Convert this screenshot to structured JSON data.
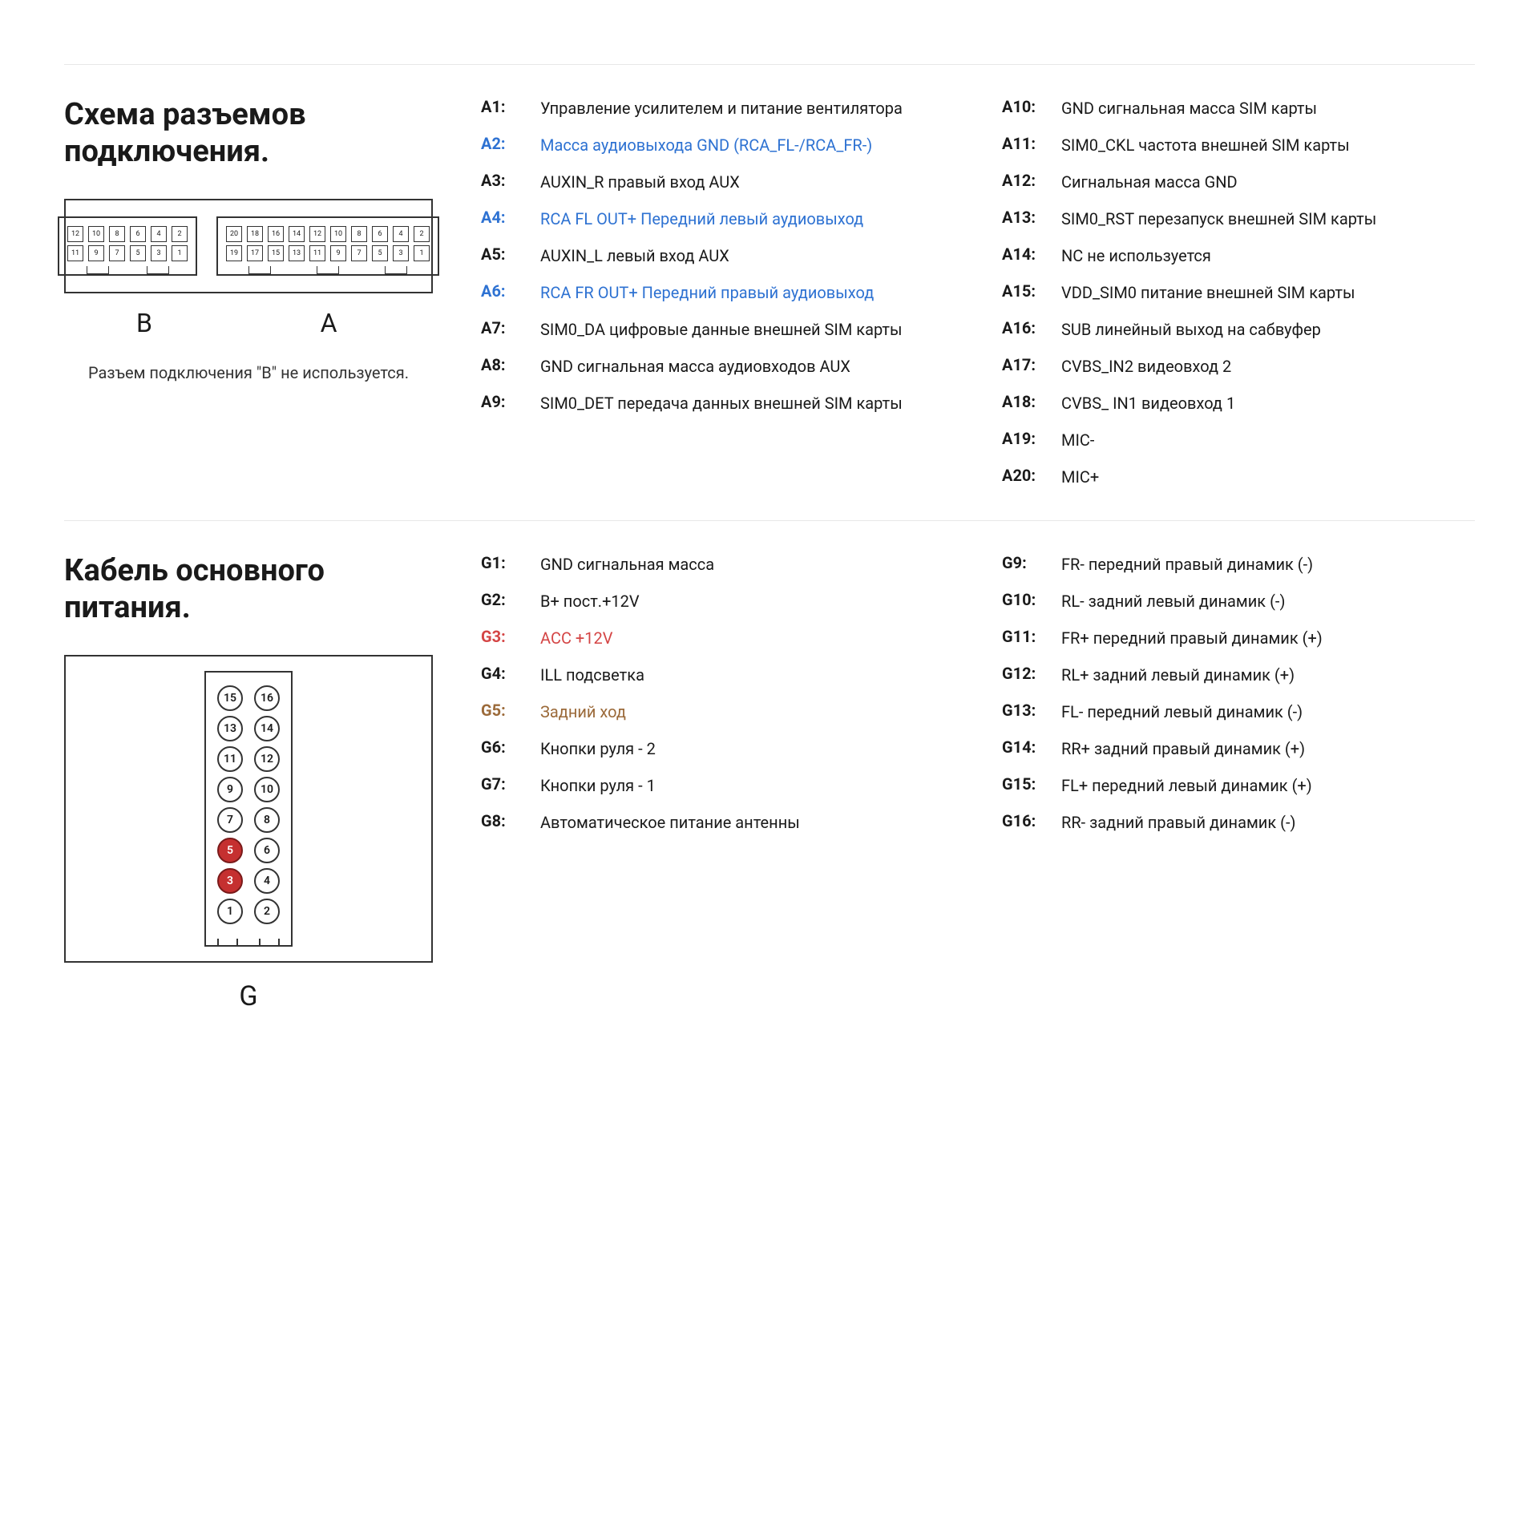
{
  "colors": {
    "black": "#1a1a1a",
    "blue": "#2e72d2",
    "red": "#d44545",
    "brown": "#9b6a3a",
    "divider": "#e8e8e8",
    "border": "#333333",
    "highlight_bg": "#c53030"
  },
  "section1": {
    "title": "Схема разъемов подключения.",
    "notice": "Разъем подключения \"B\" не используется.",
    "labels": {
      "B": "B",
      "A": "A"
    },
    "connectorB": {
      "rows": 2,
      "cols": 6,
      "top_start": 12,
      "bottom_start": 11
    },
    "connectorA": {
      "rows": 2,
      "cols": 10,
      "top_start": 20,
      "bottom_start": 19
    },
    "pins_left": [
      {
        "id": "A1:",
        "desc": "Управление усилителем и питание вентилятора",
        "color": "black"
      },
      {
        "id": "A2:",
        "desc": "Масса аудиовыхода GND (RCA_FL-/RCA_FR-)",
        "color": "blue"
      },
      {
        "id": "A3:",
        "desc": "AUXIN_R правый вход AUX",
        "color": "black"
      },
      {
        "id": "A4:",
        "desc": "RCA FL OUT+  Передний левый аудиовыход",
        "color": "blue"
      },
      {
        "id": "A5:",
        "desc": "AUXIN_L левый вход AUX",
        "color": "black"
      },
      {
        "id": "A6:",
        "desc": "RCA FR OUT+  Передний правый аудиовыход",
        "color": "blue"
      },
      {
        "id": "A7:",
        "desc": "SIM0_DA цифровые данные внешней SIM карты",
        "color": "black"
      },
      {
        "id": "A8:",
        "desc": "GND сигнальная масса аудиовходов AUX",
        "color": "black"
      },
      {
        "id": "A9:",
        "desc": "SIM0_DET передача данных внешней SIM карты",
        "color": "black"
      }
    ],
    "pins_right": [
      {
        "id": "A10:",
        "desc": "GND сигнальная масса SIM карты",
        "color": "black"
      },
      {
        "id": "A11:",
        "desc": "SIM0_CKL частота внешней SIM карты",
        "color": "black"
      },
      {
        "id": "A12:",
        "desc": "Сигнальная масса GND",
        "color": "black"
      },
      {
        "id": "A13:",
        "desc": "SIM0_RST перезапуск внешней SIM карты",
        "color": "black"
      },
      {
        "id": "A14:",
        "desc": "NC  не используется",
        "color": "black"
      },
      {
        "id": "A15:",
        "desc": "VDD_SIM0 питание внешней SIM карты",
        "color": "black"
      },
      {
        "id": "A16:",
        "desc": "SUB линейный выход на сабвуфер",
        "color": "black"
      },
      {
        "id": "A17:",
        "desc": "CVBS_IN2 видеовход 2",
        "color": "black"
      },
      {
        "id": "A18:",
        "desc": "CVBS_ IN1 видеовход 1",
        "color": "black"
      },
      {
        "id": "A19:",
        "desc": "MIC-",
        "color": "black"
      },
      {
        "id": "A20:",
        "desc": "MIC+",
        "color": "black"
      }
    ]
  },
  "section2": {
    "title": "Кабель основного питания.",
    "label": "G",
    "connector": {
      "layout": [
        [
          15,
          16
        ],
        [
          13,
          14
        ],
        [
          11,
          12
        ],
        [
          9,
          10
        ],
        [
          7,
          8
        ],
        [
          5,
          6
        ],
        [
          3,
          4
        ],
        [
          1,
          2
        ]
      ],
      "highlighted": [
        3,
        5
      ]
    },
    "pins_left": [
      {
        "id": "G1:",
        "desc": "GND сигнальная масса",
        "color": "black"
      },
      {
        "id": "G2:",
        "desc": "B+ пост.+12V",
        "color": "black"
      },
      {
        "id": "G3:",
        "desc": "ACC +12V",
        "color": "red"
      },
      {
        "id": "G4:",
        "desc": "ILL подсветка",
        "color": "black"
      },
      {
        "id": "G5:",
        "desc": "Задний ход",
        "color": "brown"
      },
      {
        "id": "G6:",
        "desc": "Кнопки руля - 2",
        "color": "black"
      },
      {
        "id": "G7:",
        "desc": "Кнопки руля - 1",
        "color": "black"
      },
      {
        "id": "G8:",
        "desc": "Автоматическое питание антенны",
        "color": "black"
      }
    ],
    "pins_right": [
      {
        "id": "G9:",
        "desc": "FR- передний правый динамик (-)",
        "color": "black"
      },
      {
        "id": "G10:",
        "desc": "RL- задний левый динамик (-)",
        "color": "black"
      },
      {
        "id": "G11:",
        "desc": "FR+ передний правый динамик (+)",
        "color": "black"
      },
      {
        "id": "G12:",
        "desc": "RL+ задний левый динамик (+)",
        "color": "black"
      },
      {
        "id": "G13:",
        "desc": "FL- передний левый динамик (-)",
        "color": "black"
      },
      {
        "id": "G14:",
        "desc": "RR+ задний правый динамик (+)",
        "color": "black"
      },
      {
        "id": "G15:",
        "desc": "FL+ передний левый динамик (+)",
        "color": "black"
      },
      {
        "id": "G16:",
        "desc": "RR- задний правый динамик (-)",
        "color": "black"
      }
    ]
  }
}
